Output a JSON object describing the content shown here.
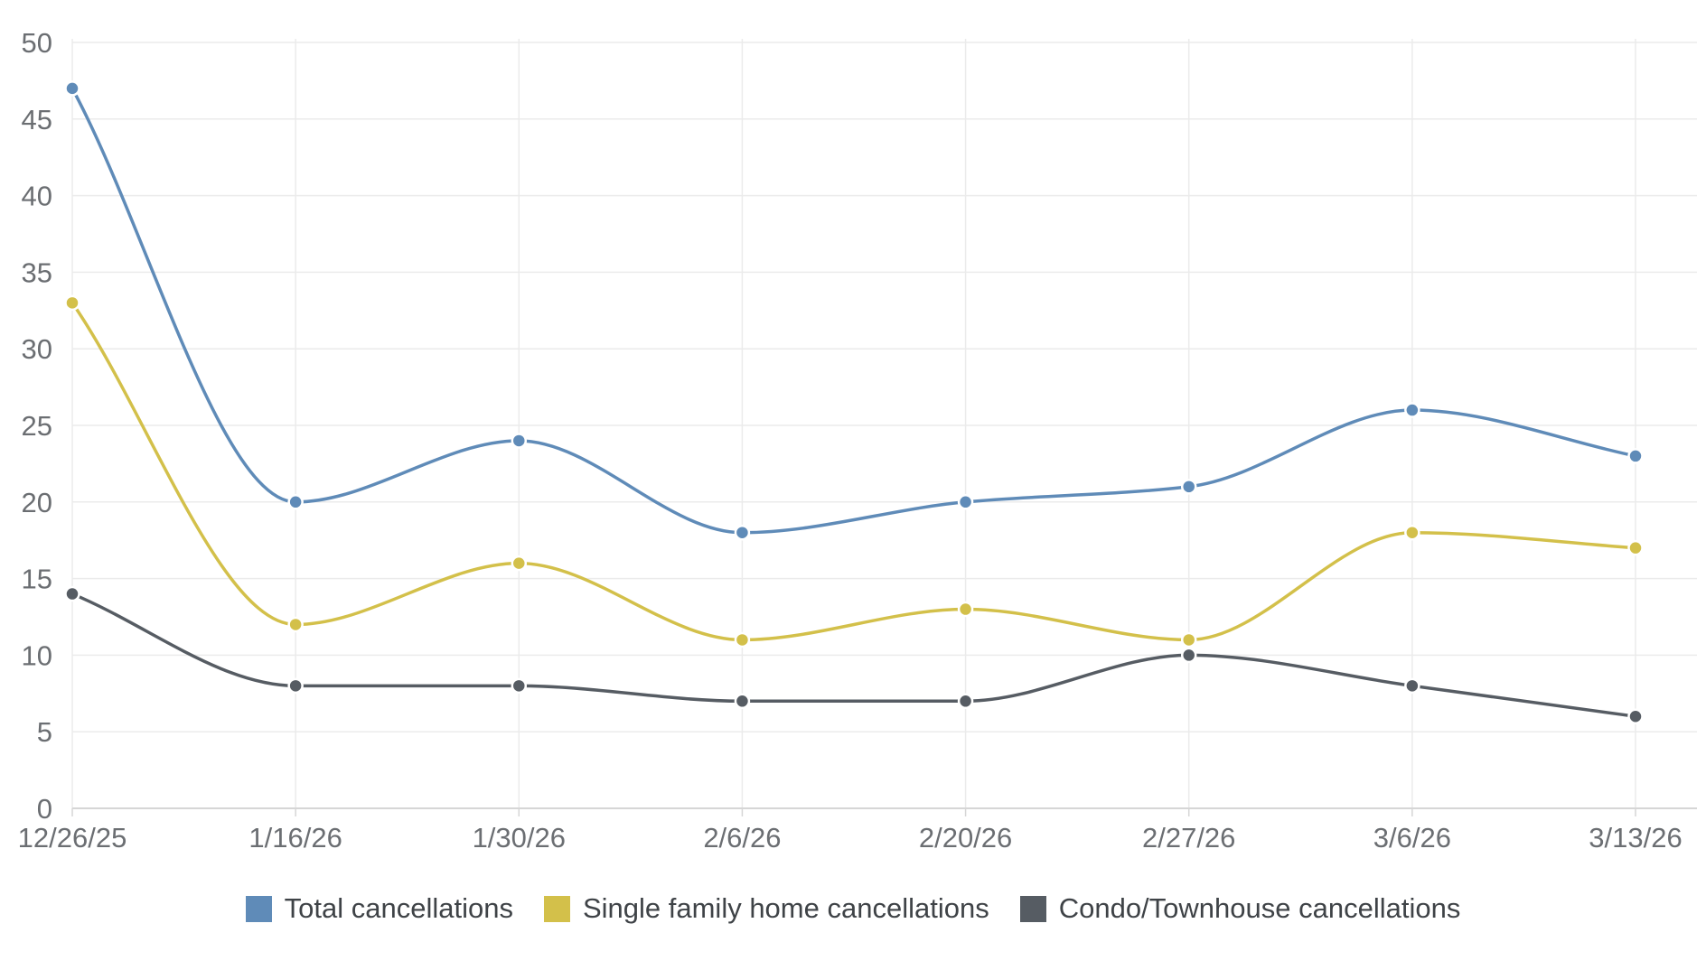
{
  "chart_data": {
    "type": "line",
    "title": "",
    "xlabel": "",
    "ylabel": "",
    "x": [
      "12/26/25",
      "1/16/26",
      "1/30/26",
      "2/6/26",
      "2/20/26",
      "2/27/26",
      "3/6/26",
      "3/13/26"
    ],
    "ylim": [
      0,
      50
    ],
    "yticks": [
      0,
      5,
      10,
      15,
      20,
      25,
      30,
      35,
      40,
      45,
      50
    ],
    "grid": true,
    "smooth": true,
    "legend_position": "bottom",
    "series": [
      {
        "name": "Total cancellations",
        "color": "#5f8bb8",
        "values": [
          47,
          20,
          24,
          18,
          20,
          21,
          26,
          23
        ]
      },
      {
        "name": "Single family home cancellations",
        "color": "#d3c04a",
        "values": [
          33,
          12,
          16,
          11,
          13,
          11,
          18,
          17
        ]
      },
      {
        "name": "Condo/Townhouse cancellations",
        "color": "#565c63",
        "values": [
          14,
          8,
          8,
          7,
          7,
          10,
          8,
          6
        ]
      }
    ]
  }
}
